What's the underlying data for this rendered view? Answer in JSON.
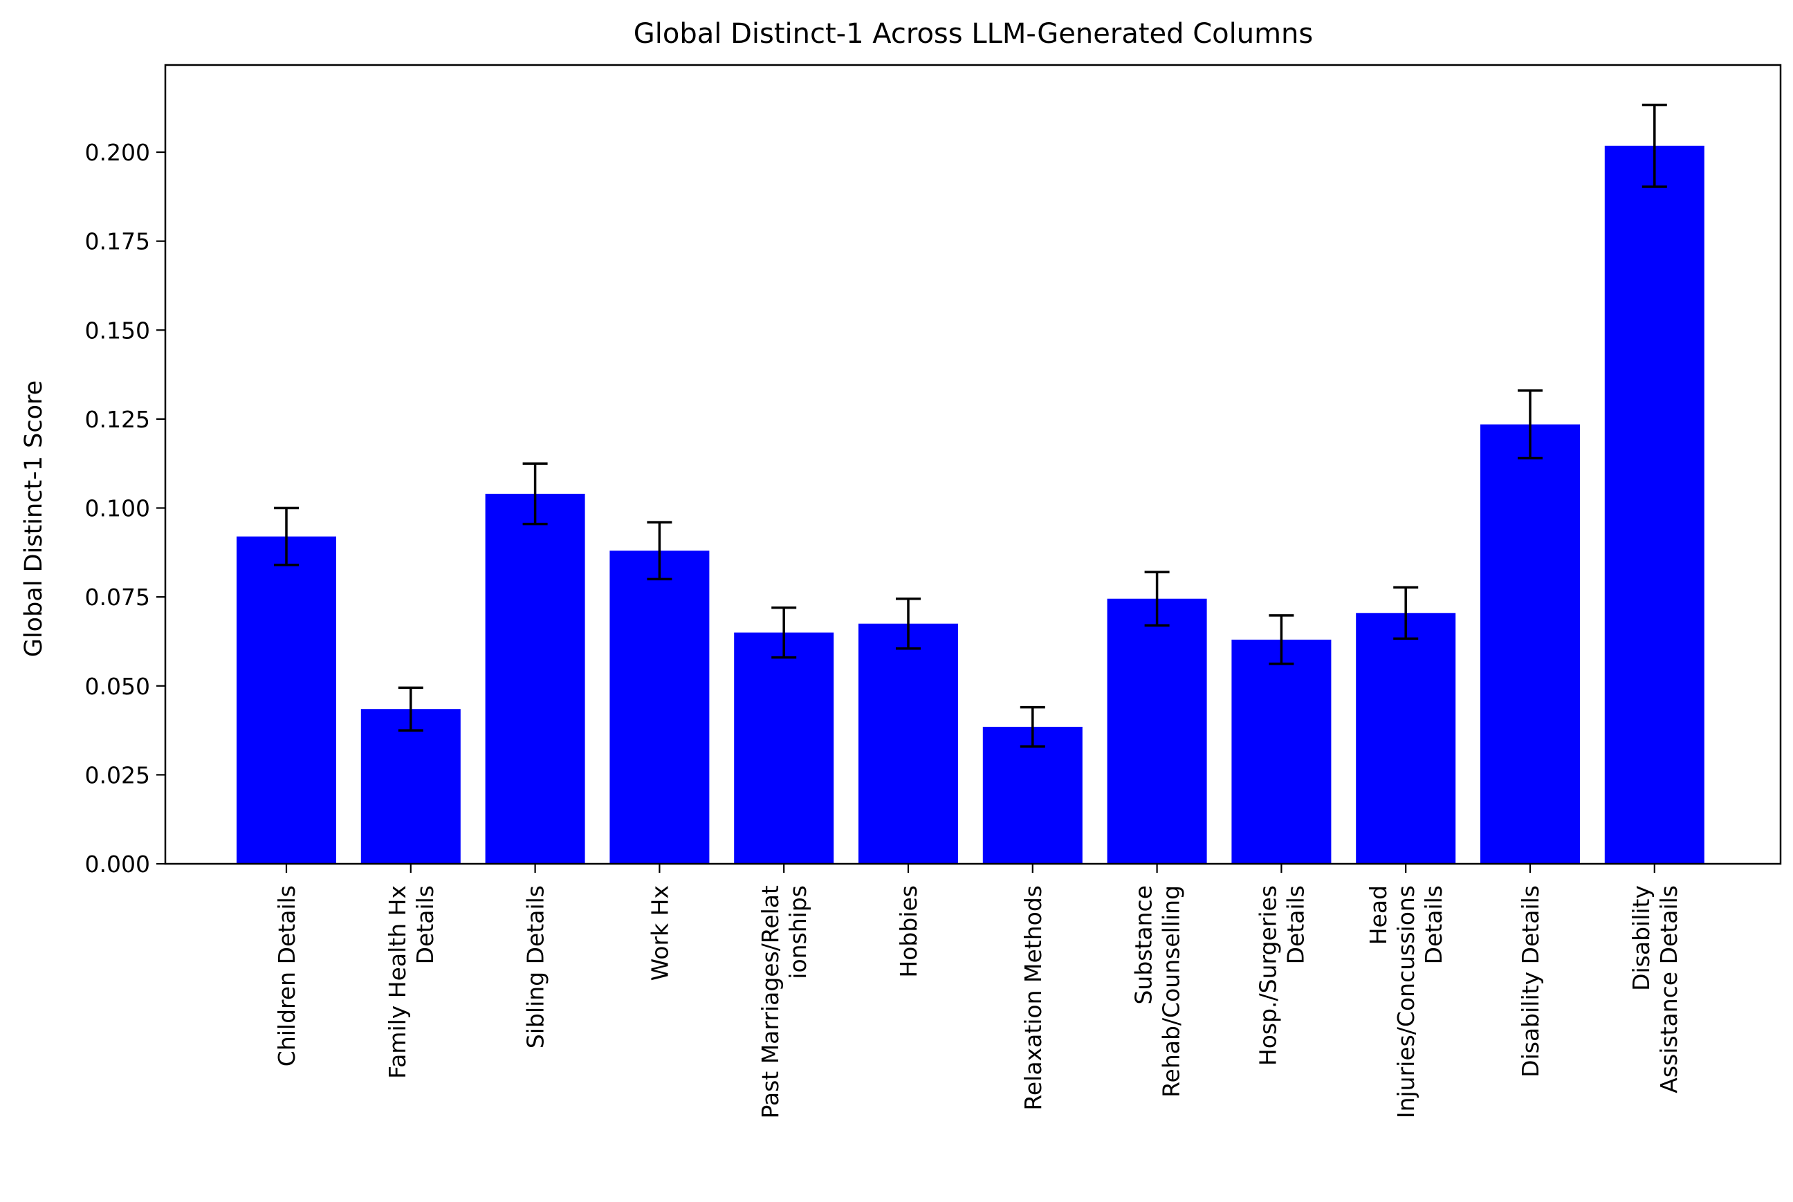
{
  "chart_data": {
    "type": "bar",
    "title": "Global Distinct-1 Across LLM-Generated Columns",
    "xlabel": "",
    "ylabel": "Global Distinct-1 Score",
    "ylim": [
      0,
      0.2245
    ],
    "yticks": [
      "0.000",
      "0.025",
      "0.050",
      "0.075",
      "0.100",
      "0.125",
      "0.150",
      "0.175",
      "0.200"
    ],
    "categories": [
      [
        "Children Details"
      ],
      [
        "Family Health Hx",
        "Details"
      ],
      [
        "Sibling Details"
      ],
      [
        "Work Hx"
      ],
      [
        "Past Marriages/Relat",
        "ionships"
      ],
      [
        "Hobbies"
      ],
      [
        "Relaxation Methods"
      ],
      [
        "Substance",
        "Rehab/Counselling"
      ],
      [
        "Hosp./Surgeries",
        "Details"
      ],
      [
        "Head",
        "Injuries/Concussions",
        "Details"
      ],
      [
        "Disability Details"
      ],
      [
        "Disability",
        "Assistance Details"
      ]
    ],
    "values": [
      0.092,
      0.0435,
      0.104,
      0.088,
      0.065,
      0.0675,
      0.0385,
      0.0745,
      0.063,
      0.0705,
      0.1235,
      0.2018
    ],
    "error": [
      0.008,
      0.006,
      0.0085,
      0.008,
      0.007,
      0.007,
      0.0055,
      0.0075,
      0.0068,
      0.0072,
      0.0095,
      0.0115
    ],
    "bar_color": "#0000ff",
    "error_color": "#000000",
    "grid": false,
    "legend": "none"
  }
}
